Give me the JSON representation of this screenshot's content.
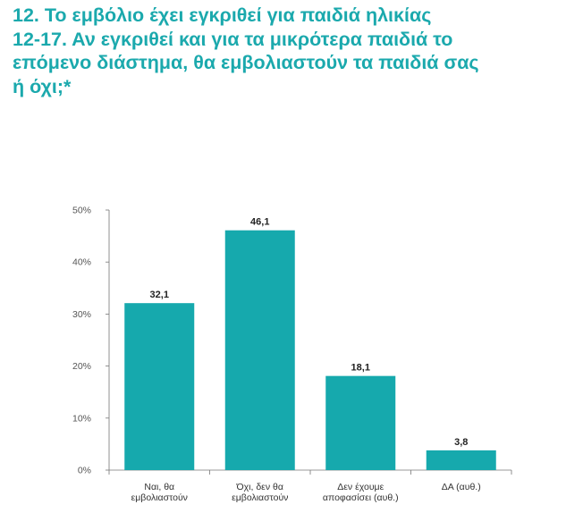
{
  "title_lines": [
    "12. Το εμβόλιο έχει εγκριθεί για παιδιά ηλικίας",
    "12-17. Αν εγκριθεί και για τα μικρότερα παιδιά το",
    "επόμενο διάστημα, θα εμβολιαστούν τα παιδιά σας",
    "ή όχι;*"
  ],
  "colors": {
    "title": "#1ba9ad",
    "bar": "#16a9ad"
  },
  "chart_data": {
    "type": "bar",
    "categories": [
      [
        "Ναι, θα",
        "εμβολιαστούν"
      ],
      [
        "Όχι, δεν θα",
        "εμβολιαστούν"
      ],
      [
        "Δεν έχουμε",
        "αποφασίσει (αυθ.)"
      ],
      [
        "ΔΑ (αυθ.)"
      ]
    ],
    "values": [
      32.1,
      46.1,
      18.1,
      3.8
    ],
    "value_labels": [
      "32,1",
      "46,1",
      "18,1",
      "3,8"
    ],
    "ylim": [
      0,
      50
    ],
    "yticks": [
      0,
      10,
      20,
      30,
      40,
      50
    ],
    "ytick_labels": [
      "0%",
      "10%",
      "20%",
      "30%",
      "40%",
      "50%"
    ],
    "grid": false,
    "legend": "none"
  }
}
